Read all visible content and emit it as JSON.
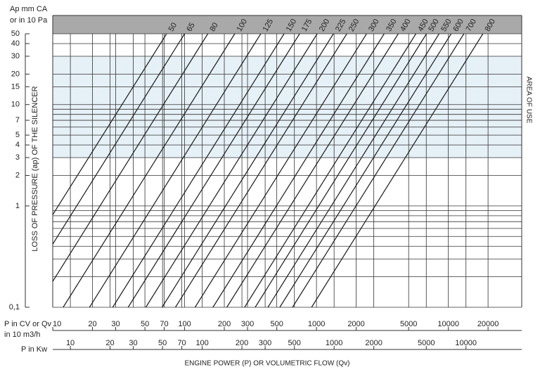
{
  "chart_data": {
    "type": "line",
    "y_unit_label": "Ap mm CA",
    "y_unit_label_2": "or in 10 Pa",
    "y_axis_label": "LOSS OF PRESSURE (ap) OF THE SILENCER",
    "x_axis_label": "P in CV or Qv",
    "x_axis_label_2": "in 10 m3/h",
    "x2_axis_label": "P in Kw",
    "x_title": "ENGINE POWER (P) OR VOLUMETRIC FLOW (Qv)",
    "area_label": "AREA OF USE",
    "area_of_use": [
      3,
      30
    ],
    "log_x": true,
    "log_y": true,
    "grid": true,
    "xlim": [
      10,
      36000
    ],
    "xticks": [
      10,
      20,
      30,
      50,
      70,
      100,
      200,
      300,
      500,
      1000,
      2000,
      5000,
      10000,
      20000
    ],
    "x2lim": [
      7.35,
      26470
    ],
    "x2ticks": [
      10,
      20,
      30,
      50,
      70,
      100,
      200,
      300,
      500,
      1000,
      2000,
      5000,
      10000
    ],
    "ylim": [
      0.1,
      50
    ],
    "yticks": [
      {
        "value": 0.1,
        "label": "0,1"
      },
      1,
      2,
      3,
      4,
      5,
      7,
      10,
      15,
      20,
      30,
      40,
      50
    ],
    "yminor": [
      0.2,
      0.3,
      0.4,
      0.5,
      0.6,
      0.7,
      0.8,
      0.9,
      6,
      8,
      9
    ],
    "color": "#1a1a1a",
    "series": [
      {
        "name": "50",
        "x": [
          10,
          73
        ],
        "values": [
          0.82,
          50
        ]
      },
      {
        "name": "65",
        "x": [
          10,
          100
        ],
        "values": [
          0.42,
          50
        ]
      },
      {
        "name": "80",
        "x": [
          10,
          150
        ],
        "values": [
          0.18,
          50
        ]
      },
      {
        "name": "100",
        "x": [
          12,
          240
        ],
        "values": [
          0.1,
          50
        ]
      },
      {
        "name": "125",
        "x": [
          19,
          378
        ],
        "values": [
          0.1,
          50
        ]
      },
      {
        "name": "150",
        "x": [
          28.5,
          568
        ],
        "values": [
          0.1,
          50
        ]
      },
      {
        "name": "175",
        "x": [
          37.3,
          745
        ],
        "values": [
          0.1,
          50
        ]
      },
      {
        "name": "200",
        "x": [
          50.8,
          1012
        ],
        "values": [
          0.1,
          50
        ]
      },
      {
        "name": "225",
        "x": [
          67.5,
          1344
        ],
        "values": [
          0.1,
          50
        ]
      },
      {
        "name": "250",
        "x": [
          85.2,
          1698
        ],
        "values": [
          0.1,
          50
        ]
      },
      {
        "name": "300",
        "x": [
          120,
          2399
        ],
        "values": [
          0.1,
          50
        ]
      },
      {
        "name": "350",
        "x": [
          164,
          3260
        ],
        "values": [
          0.1,
          50
        ]
      },
      {
        "name": "400",
        "x": [
          209,
          4170
        ],
        "values": [
          0.1,
          50
        ]
      },
      {
        "name": "450",
        "x": [
          285,
          5675
        ],
        "values": [
          0.1,
          50
        ]
      },
      {
        "name": "500",
        "x": [
          343,
          6825
        ],
        "values": [
          0.1,
          50
        ]
      },
      {
        "name": "550",
        "x": [
          428,
          8510
        ],
        "values": [
          0.1,
          50
        ]
      },
      {
        "name": "600",
        "x": [
          527,
          10500
        ],
        "values": [
          0.1,
          50
        ]
      },
      {
        "name": "700",
        "x": [
          658,
          13120
        ],
        "values": [
          0.1,
          50
        ]
      },
      {
        "name": "800",
        "x": [
          918,
          18280
        ],
        "values": [
          0.1,
          50
        ]
      }
    ]
  }
}
